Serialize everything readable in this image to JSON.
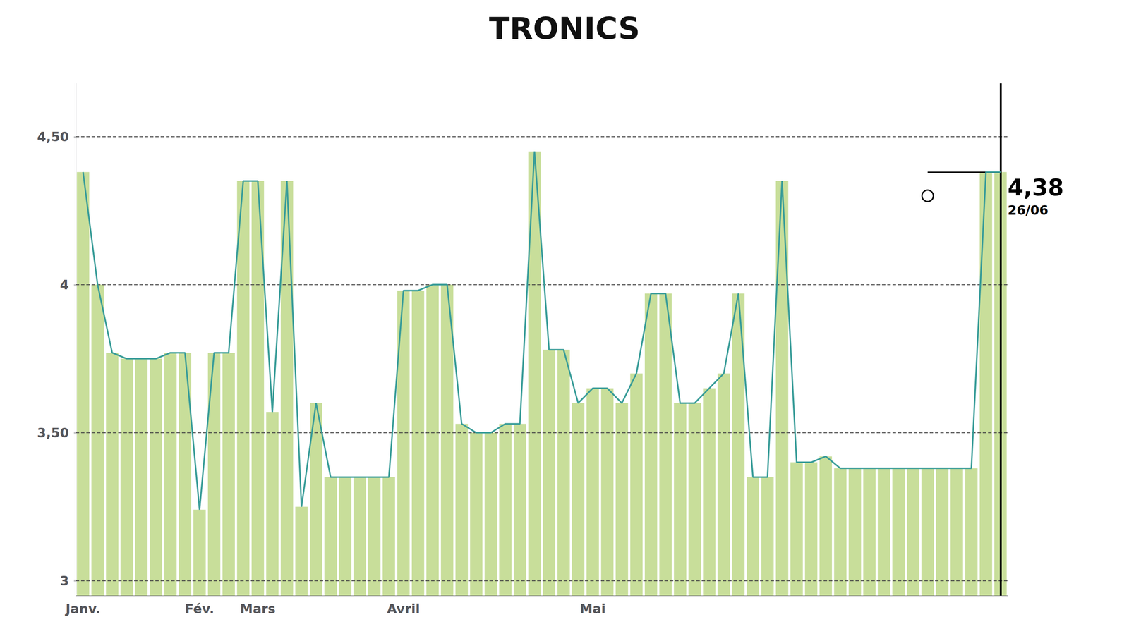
{
  "chart_data": {
    "type": "bar",
    "title": "TRONICS",
    "categories": [
      "Janv.",
      null,
      null,
      null,
      null,
      null,
      null,
      null,
      "Fév.",
      null,
      null,
      null,
      "Mars",
      null,
      null,
      null,
      null,
      null,
      null,
      null,
      null,
      null,
      "Avril",
      null,
      null,
      null,
      null,
      null,
      null,
      null,
      null,
      null,
      null,
      null,
      null,
      "Mai",
      null,
      null,
      null,
      null,
      null,
      null,
      null,
      null,
      null,
      null,
      null,
      null,
      null,
      null,
      null,
      null,
      null,
      null,
      null,
      null,
      null,
      null,
      null,
      null,
      null,
      null,
      null,
      null
    ],
    "series": [
      {
        "type": "bar",
        "color": "#c8de9a",
        "values": [
          4.38,
          4.0,
          3.77,
          3.75,
          3.75,
          3.75,
          3.77,
          3.77,
          3.24,
          3.77,
          3.77,
          4.35,
          4.35,
          3.57,
          4.35,
          3.25,
          3.6,
          3.35,
          3.35,
          3.35,
          3.35,
          3.35,
          3.98,
          3.98,
          4.0,
          4.0,
          3.53,
          3.5,
          3.5,
          3.53,
          3.53,
          4.45,
          3.78,
          3.78,
          3.6,
          3.65,
          3.65,
          3.6,
          3.7,
          3.97,
          3.97,
          3.6,
          3.6,
          3.65,
          3.7,
          3.97,
          3.35,
          3.35,
          4.35,
          3.4,
          3.4,
          3.42,
          3.38,
          3.38,
          3.38,
          3.38,
          3.38,
          3.38,
          3.38,
          3.38,
          3.38,
          3.38,
          4.38,
          4.38
        ]
      },
      {
        "type": "line",
        "color": "#3a9d99",
        "values": [
          4.38,
          4.0,
          3.77,
          3.75,
          3.75,
          3.75,
          3.77,
          3.77,
          3.24,
          3.77,
          3.77,
          4.35,
          4.35,
          3.57,
          4.35,
          3.25,
          3.6,
          3.35,
          3.35,
          3.35,
          3.35,
          3.35,
          3.98,
          3.98,
          4.0,
          4.0,
          3.53,
          3.5,
          3.5,
          3.53,
          3.53,
          4.45,
          3.78,
          3.78,
          3.6,
          3.65,
          3.65,
          3.6,
          3.7,
          3.97,
          3.97,
          3.6,
          3.6,
          3.65,
          3.7,
          3.97,
          3.35,
          3.35,
          4.35,
          3.4,
          3.4,
          3.42,
          3.38,
          3.38,
          3.38,
          3.38,
          3.38,
          3.38,
          3.38,
          3.38,
          3.38,
          3.38,
          4.38,
          4.38
        ]
      }
    ],
    "ylim": [
      2.95,
      4.68
    ],
    "yticks": [
      3,
      {
        "value": 3.5,
        "label": "3,50"
      },
      4,
      {
        "value": 4.5,
        "label": "4,50"
      }
    ],
    "grid": true,
    "circle": {
      "index": 58,
      "value": 4.3
    },
    "vertical_line_index": 63,
    "reference_line": {
      "value": 4.38,
      "from_index": 58,
      "to_index": 63
    },
    "annotations": [
      {
        "text": "4,38",
        "index": 63,
        "value": 4.38
      },
      {
        "text": "26/06",
        "index": 63,
        "value": 4.38
      }
    ]
  }
}
